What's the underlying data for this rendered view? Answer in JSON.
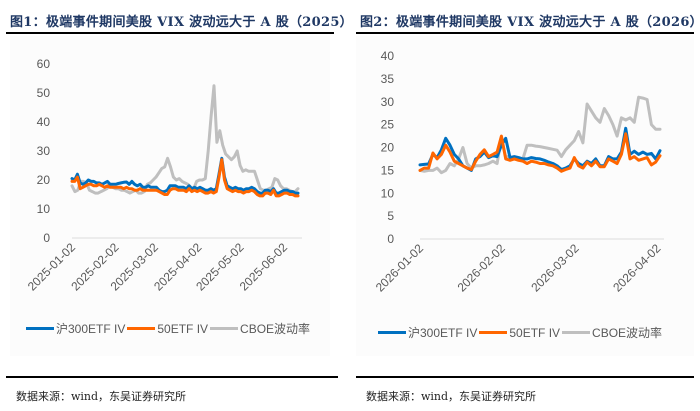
{
  "chart_data": [
    {
      "type": "line",
      "title": "图1：极端事件期间美股 VIX 波动远大于 A 股（2025）",
      "xlabel": "",
      "ylabel": "",
      "ylim": [
        0,
        60
      ],
      "yticks": [
        0,
        10,
        20,
        30,
        40,
        50,
        60
      ],
      "xticks": [
        "2025-01-02",
        "2025-02-02",
        "2025-03-02",
        "2025-04-02",
        "2025-05-02",
        "2025-06-02"
      ],
      "x_range": [
        "2025-01-02",
        "2025-06-12"
      ],
      "legend_position": "bottom",
      "grid": false,
      "series": [
        {
          "name": "沪300ETF IV",
          "color": "#0070c0",
          "values": [
            20.5,
            20,
            22,
            19,
            18.5,
            19,
            20,
            19.5,
            19.5,
            19,
            19,
            18.5,
            19,
            19.5,
            18.5,
            18.5,
            18.5,
            18.8,
            19,
            19.2,
            19.3,
            18.5,
            19.5,
            18.5,
            18,
            18.5,
            17.5,
            17.5,
            18,
            17.5,
            17.5,
            17.5,
            16.5,
            16,
            16,
            16.5,
            18,
            18,
            18,
            17.5,
            17.5,
            17.5,
            17,
            18,
            17,
            17.5,
            17,
            17.5,
            17,
            16.5,
            16.5,
            17,
            16.5,
            17,
            22,
            27.5,
            21,
            18,
            17.5,
            17,
            17.5,
            17,
            17,
            16.5,
            17,
            17,
            17.5,
            17,
            16,
            15.5,
            15.5,
            16.5,
            16.5,
            16,
            17,
            15.5,
            15.5,
            16,
            16.5,
            16.5,
            16,
            16,
            15.5,
            15.5
          ]
        },
        {
          "name": "50ETF IV",
          "color": "#ff6600",
          "values": [
            19.5,
            19.5,
            21,
            17,
            17.5,
            18,
            18.5,
            18.5,
            18,
            18,
            18.5,
            18,
            17.5,
            18,
            17.5,
            17.5,
            17.5,
            17.5,
            17.5,
            17,
            17.5,
            17,
            17,
            16.5,
            16.5,
            17,
            16.5,
            16.5,
            16.5,
            16.5,
            16.5,
            16.5,
            16,
            15.5,
            15,
            15,
            16.5,
            17,
            17,
            16.5,
            16.5,
            16.5,
            16,
            17,
            16,
            16.5,
            16,
            16.5,
            16,
            15.5,
            15.5,
            16,
            15.5,
            16,
            21,
            27,
            20,
            17,
            16.5,
            16,
            16.5,
            16,
            16,
            15.5,
            16,
            16,
            16.5,
            16,
            15,
            14.5,
            14.5,
            15.5,
            15.5,
            15,
            16.5,
            14.5,
            14.5,
            15,
            15.5,
            15.5,
            15,
            15,
            14.5,
            14.5
          ]
        },
        {
          "name": "CBOE波动率",
          "color": "#bfbfbf",
          "values": [
            18,
            16,
            16.5,
            19.5,
            19.5,
            19,
            16.5,
            16,
            15.5,
            15.5,
            16,
            16.5,
            17,
            18,
            17.5,
            17,
            17,
            16.5,
            16.5,
            16,
            15.5,
            16,
            16.5,
            15.5,
            15.5,
            16,
            18.5,
            19,
            20,
            21,
            22.5,
            24,
            24.5,
            27.5,
            24.5,
            21,
            20,
            20.5,
            19.5,
            19,
            18.5,
            17.5,
            17,
            19.5,
            20,
            20,
            20.5,
            30,
            42,
            52.5,
            33,
            37,
            32,
            29,
            28,
            27,
            28,
            30,
            25,
            23,
            23.5,
            23,
            23,
            23,
            20,
            17,
            16.5,
            16.5,
            17,
            17.5,
            20.5,
            20,
            18,
            17,
            17,
            16.5,
            16,
            16,
            17
          ]
        }
      ]
    },
    {
      "type": "line",
      "title": "图2：极端事件期间美股 VIX 波动远大于 A 股（2026）",
      "xlabel": "",
      "ylabel": "",
      "ylim": [
        0,
        40
      ],
      "yticks": [
        0,
        5,
        10,
        15,
        20,
        25,
        30,
        35,
        40
      ],
      "xticks": [
        "2026-01-02",
        "2026-02-02",
        "2026-03-02",
        "2026-04-02"
      ],
      "x_range": [
        "2026-01-02",
        "2026-04-03"
      ],
      "legend_position": "bottom",
      "grid": false,
      "series": [
        {
          "name": "沪300ETF IV",
          "color": "#0070c0",
          "values": [
            16.2,
            16.3,
            16.4,
            18.5,
            17.8,
            19.5,
            22,
            20.5,
            18.5,
            17.5,
            16,
            15.5,
            15,
            17.5,
            18,
            19,
            17.8,
            18.2,
            18,
            20.5,
            22,
            17.8,
            18,
            17.8,
            17.5,
            17.5,
            17.8,
            17.6,
            17.5,
            17.2,
            16.8,
            16.5,
            16,
            15.2,
            15.5,
            16,
            17.5,
            16.5,
            16,
            17,
            16.5,
            17.5,
            16,
            16,
            18,
            17.5,
            17.5,
            19,
            24.2,
            18.5,
            19.2,
            18.5,
            19,
            18.5,
            18.7,
            17.5,
            19.3
          ]
        },
        {
          "name": "50ETF IV",
          "color": "#ff6600",
          "values": [
            15,
            15.5,
            15.5,
            18.8,
            17.5,
            18.5,
            20.5,
            19,
            17,
            16.5,
            16,
            15.5,
            15.2,
            17,
            18.5,
            19.5,
            18,
            18.5,
            19,
            22.5,
            17.5,
            17.2,
            17.5,
            17.2,
            17,
            16.5,
            17,
            16.8,
            16.5,
            16.5,
            16.2,
            16,
            15.5,
            14.8,
            15.2,
            15.5,
            17.8,
            16,
            15.5,
            16.8,
            16,
            17,
            15.8,
            15.8,
            17.5,
            17,
            16.5,
            18.5,
            23,
            17.5,
            18,
            17.2,
            17.5,
            17.8,
            16.2,
            16.8,
            18.2
          ]
        },
        {
          "name": "CBOE波动率",
          "color": "#bfbfbf",
          "values": [
            15,
            14.8,
            15,
            15,
            15.5,
            14.5,
            15,
            16.5,
            16,
            17.5,
            20,
            16.5,
            15.5,
            16,
            16,
            16.2,
            16.5,
            17,
            16.5,
            22,
            18,
            18,
            17.5,
            17.5,
            17.5,
            20.5,
            20.5,
            20.3,
            20.2,
            20,
            19.8,
            19.6,
            19.4,
            18,
            19.5,
            20.5,
            21.5,
            23.5,
            21,
            29.5,
            28,
            26.5,
            25.5,
            28.5,
            27,
            25,
            22.5,
            26.5,
            26,
            26.5,
            25.5,
            31,
            30.8,
            30.5,
            25,
            24,
            24
          ]
        }
      ]
    }
  ],
  "panels": [
    {
      "title": "图1：极端事件期间美股 VIX 波动远大于 A 股（2025）",
      "source": "数据来源：wind，东吴证券研究所"
    },
    {
      "title": "图2：极端事件期间美股 VIX 波动远大于 A 股（2026）",
      "source": "数据来源：wind，东吴证券研究所"
    }
  ]
}
